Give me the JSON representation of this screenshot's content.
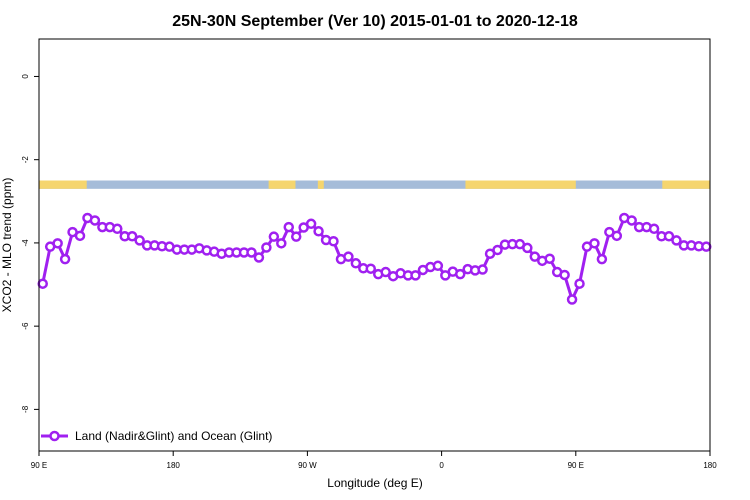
{
  "chart_data": {
    "type": "line",
    "title": "25N-30N September (Ver 10)   2015-01-01 to 2020-12-18",
    "xlabel": "Longitude (deg E)",
    "ylabel": "XCO2 - MLO trend (ppm)",
    "xlim": [
      90,
      540
    ],
    "ylim": [
      -9.0,
      0.9
    ],
    "x_ticks": [
      90,
      180,
      270,
      360,
      450,
      540
    ],
    "x_tick_labels": [
      "90 E",
      "180",
      "90 W",
      "0",
      "90 E",
      "180"
    ],
    "y_ticks": [
      0,
      -2,
      -4,
      -6,
      -8
    ],
    "y_tick_labels": [
      "0",
      "-2",
      "-4",
      "-6",
      "-8"
    ],
    "legend_position": "bottom-left",
    "colors": {
      "series": "#a020f0",
      "land": "#f5d56e",
      "ocean": "#a5bcd9"
    },
    "land_ocean_strip": {
      "y_range": [
        -2.5,
        -2.7
      ],
      "land_segments": [
        [
          90,
          122
        ],
        [
          244,
          262
        ],
        [
          278,
          280
        ],
        [
          277,
          281
        ],
        [
          376,
          450
        ],
        [
          508,
          540
        ]
      ]
    },
    "series": [
      {
        "name": "Land (Nadir&Glint) and Ocean (Glint)",
        "x": [
          92.5,
          97.5,
          102.5,
          107.5,
          112.5,
          117.5,
          122.5,
          127.5,
          132.5,
          137.5,
          142.5,
          147.5,
          152.5,
          157.5,
          162.5,
          167.5,
          172.5,
          177.5,
          182.5,
          187.5,
          192.5,
          197.5,
          202.5,
          207.5,
          212.5,
          217.5,
          222.5,
          227.5,
          232.5,
          237.5,
          242.5,
          247.5,
          252.5,
          257.5,
          262.5,
          267.5,
          272.5,
          277.5,
          282.5,
          287.5,
          292.5,
          297.5,
          302.5,
          307.5,
          312.5,
          317.5,
          322.5,
          327.5,
          332.5,
          337.5,
          342.5,
          347.5,
          352.5,
          357.5,
          362.5,
          367.5,
          372.5,
          377.5,
          382.5,
          387.5,
          392.5,
          397.5,
          402.5,
          407.5,
          412.5,
          417.5,
          422.5,
          427.5,
          432.5,
          437.5,
          442.5,
          447.5,
          452.5,
          457.5,
          462.5,
          467.5,
          472.5,
          477.5,
          482.5,
          487.5,
          492.5,
          497.5,
          502.5,
          507.5,
          512.5,
          517.5,
          522.5,
          527.5,
          532.5,
          537.5
        ],
        "values": [
          -4.98,
          -4.09,
          -4.01,
          -4.39,
          -3.74,
          -3.83,
          -3.4,
          -3.46,
          -3.62,
          -3.62,
          -3.66,
          -3.84,
          -3.84,
          -3.94,
          -4.06,
          -4.06,
          -4.08,
          -4.09,
          -4.16,
          -4.16,
          -4.16,
          -4.13,
          -4.18,
          -4.21,
          -4.26,
          -4.23,
          -4.23,
          -4.23,
          -4.23,
          -4.35,
          -4.11,
          -3.85,
          -4.01,
          -3.62,
          -3.85,
          -3.63,
          -3.54,
          -3.72,
          -3.93,
          -3.96,
          -4.39,
          -4.33,
          -4.49,
          -4.61,
          -4.62,
          -4.75,
          -4.7,
          -4.8,
          -4.73,
          -4.78,
          -4.78,
          -4.65,
          -4.58,
          -4.55,
          -4.78,
          -4.69,
          -4.75,
          -4.63,
          -4.66,
          -4.64,
          -4.26,
          -4.17,
          -4.04,
          -4.03,
          -4.03,
          -4.12,
          -4.33,
          -4.43,
          -4.38,
          -4.7,
          -4.77,
          -5.36,
          -4.98,
          -4.09,
          -4.01,
          -4.39,
          -3.74,
          -3.83,
          -3.4,
          -3.46,
          -3.62,
          -3.62,
          -3.66,
          -3.84,
          -3.84,
          -3.94,
          -4.06,
          -4.06,
          -4.08,
          -4.09
        ]
      }
    ]
  }
}
